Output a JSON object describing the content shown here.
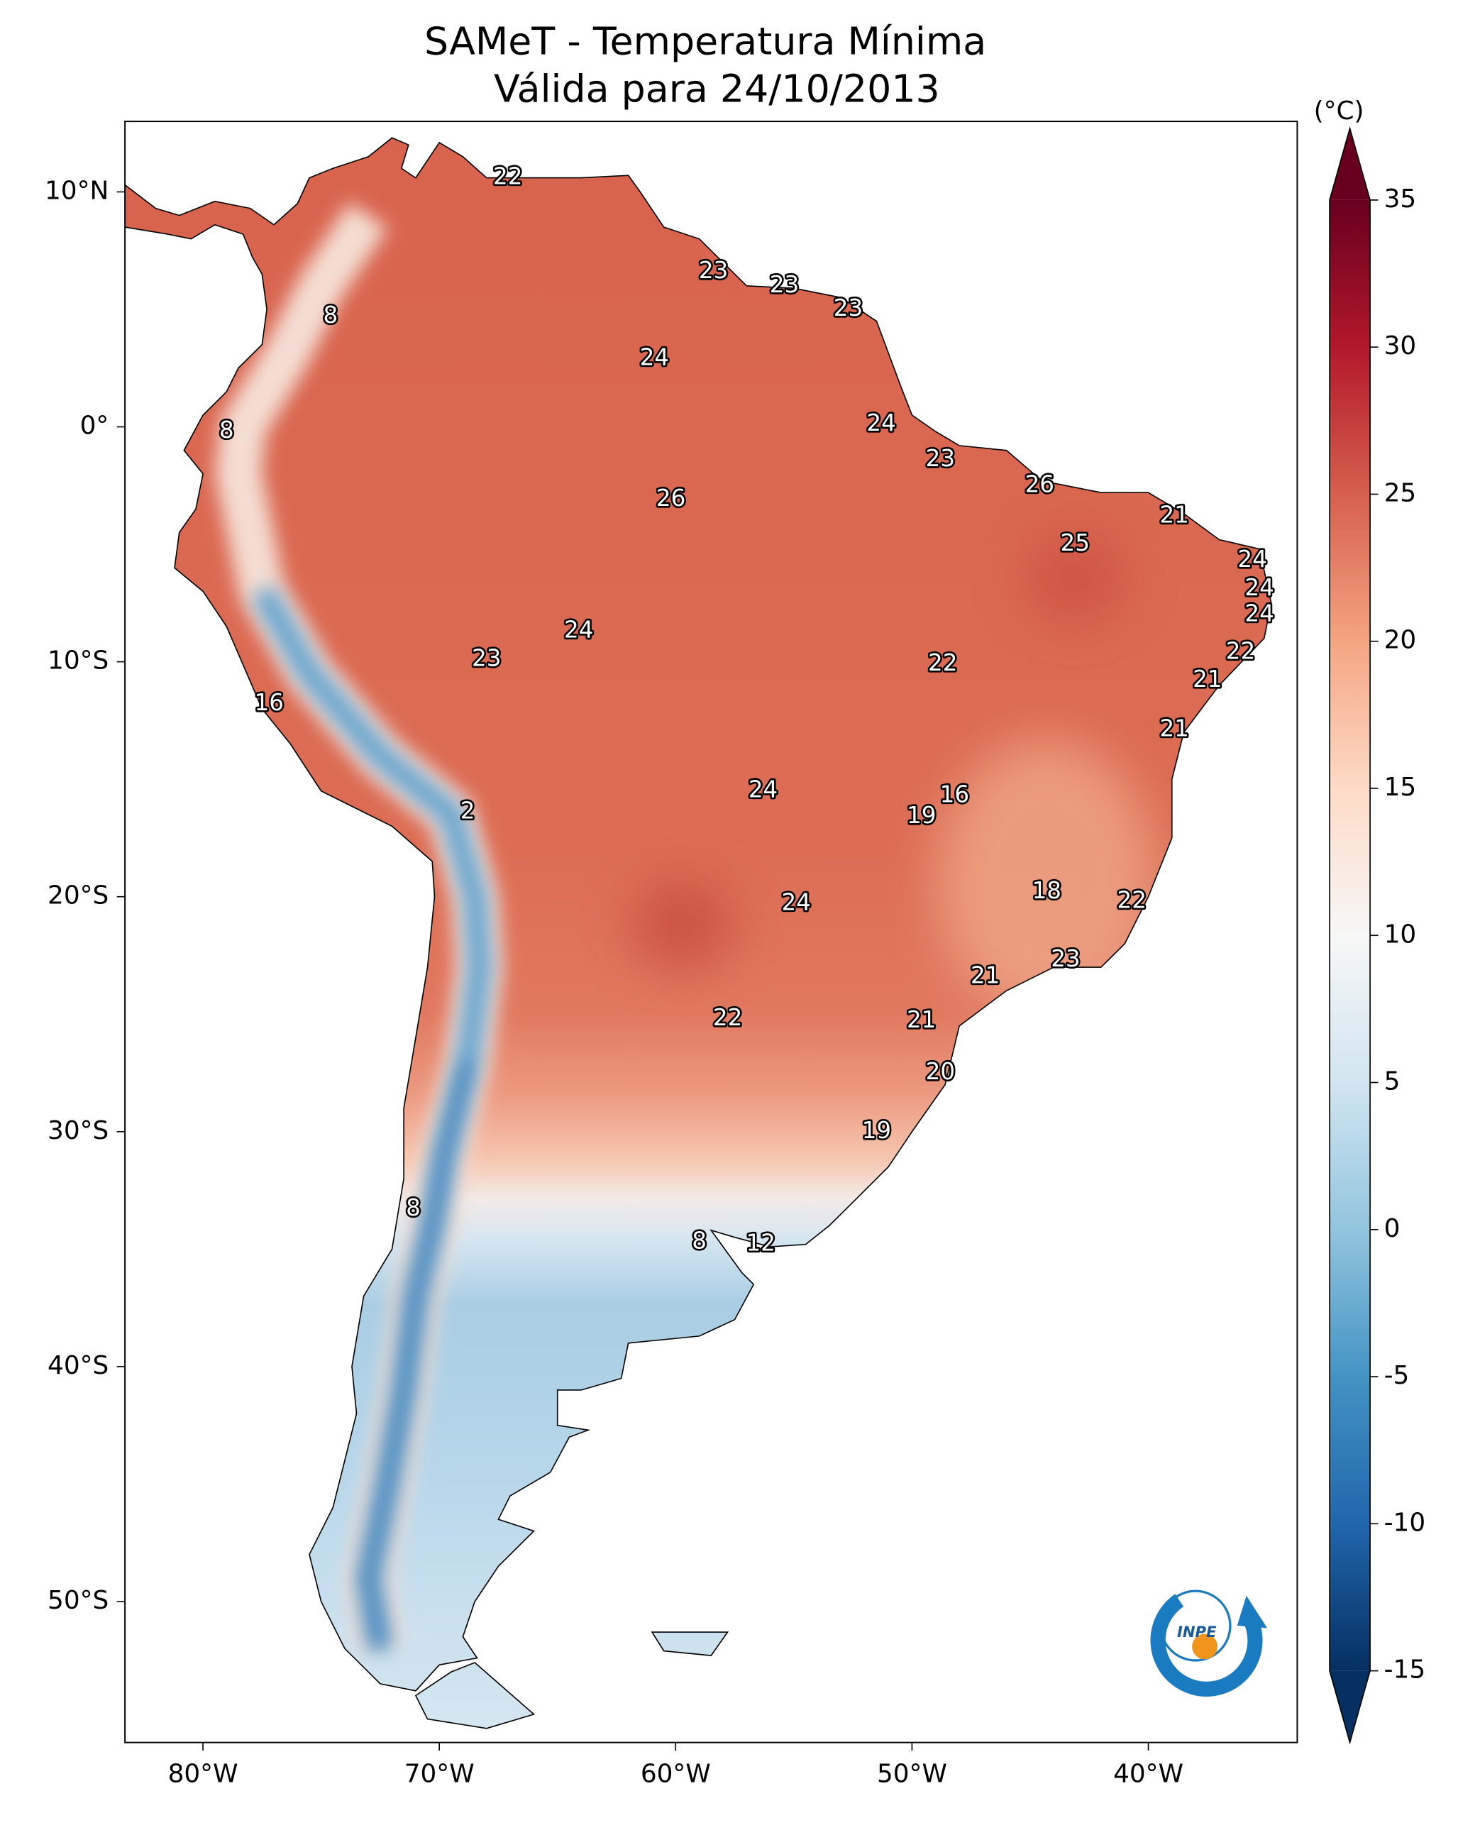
{
  "chart_data": {
    "type": "map",
    "title": "SAMeT - Temperatura Mínima",
    "subtitle": "Válida para 24/10/2013",
    "xlim": [
      -83.3,
      -33.7
    ],
    "ylim": [
      -56,
      13
    ],
    "xticks": [
      {
        "value": -80,
        "label": "80°W"
      },
      {
        "value": -70,
        "label": "70°W"
      },
      {
        "value": -60,
        "label": "60°W"
      },
      {
        "value": -50,
        "label": "50°W"
      },
      {
        "value": -40,
        "label": "40°W"
      }
    ],
    "yticks": [
      {
        "value": 10,
        "label": "10°N"
      },
      {
        "value": 0,
        "label": "0°"
      },
      {
        "value": -10,
        "label": "10°S"
      },
      {
        "value": -20,
        "label": "20°S"
      },
      {
        "value": -30,
        "label": "30°S"
      },
      {
        "value": -40,
        "label": "40°S"
      },
      {
        "value": -50,
        "label": "50°S"
      }
    ],
    "colorbar": {
      "label": "(°C)",
      "ticks": [
        35,
        30,
        25,
        20,
        15,
        10,
        5,
        0,
        -5,
        -10,
        -15
      ],
      "colors": [
        "#053061",
        "#2166ac",
        "#4393c3",
        "#92c5de",
        "#d1e5f0",
        "#f7f7f7",
        "#fddbc7",
        "#f4a582",
        "#d6604d",
        "#b2182b",
        "#67001f"
      ]
    },
    "points": {
      "x": [
        -67.1,
        -74.6,
        -58.4,
        -55.4,
        -52.7,
        -60.9,
        -79.0,
        -51.3,
        -48.8,
        -60.2,
        -44.6,
        -38.9,
        -43.1,
        -35.6,
        -35.3,
        -35.3,
        -64.1,
        -68.0,
        -48.7,
        -36.1,
        -37.5,
        -77.2,
        -38.9,
        -56.3,
        -48.2,
        -49.6,
        -68.8,
        -44.3,
        -54.9,
        -40.7,
        -43.5,
        -46.9,
        -57.8,
        -49.6,
        -48.8,
        -51.5,
        -71.1,
        -59.0,
        -56.4
      ],
      "y": [
        10.6,
        4.7,
        6.6,
        6.0,
        5.0,
        2.9,
        -0.2,
        0.1,
        -1.4,
        -3.1,
        -2.5,
        -3.8,
        -5.0,
        -5.7,
        -6.9,
        -8.0,
        -8.7,
        -9.9,
        -10.1,
        -9.6,
        -10.8,
        -11.8,
        -12.9,
        -15.5,
        -15.7,
        -16.6,
        -16.4,
        -19.8,
        -20.3,
        -20.2,
        -22.7,
        -23.4,
        -25.2,
        -25.3,
        -27.5,
        -30.0,
        -33.3,
        -34.7,
        -34.8
      ],
      "values": [
        22,
        8,
        23,
        23,
        23,
        24,
        8,
        24,
        23,
        26,
        26,
        21,
        25,
        24,
        24,
        24,
        24,
        23,
        22,
        22,
        21,
        16,
        21,
        24,
        16,
        19,
        2,
        18,
        24,
        22,
        23,
        21,
        22,
        21,
        20,
        19,
        8,
        8,
        12
      ]
    },
    "logo_text": "INPE"
  }
}
